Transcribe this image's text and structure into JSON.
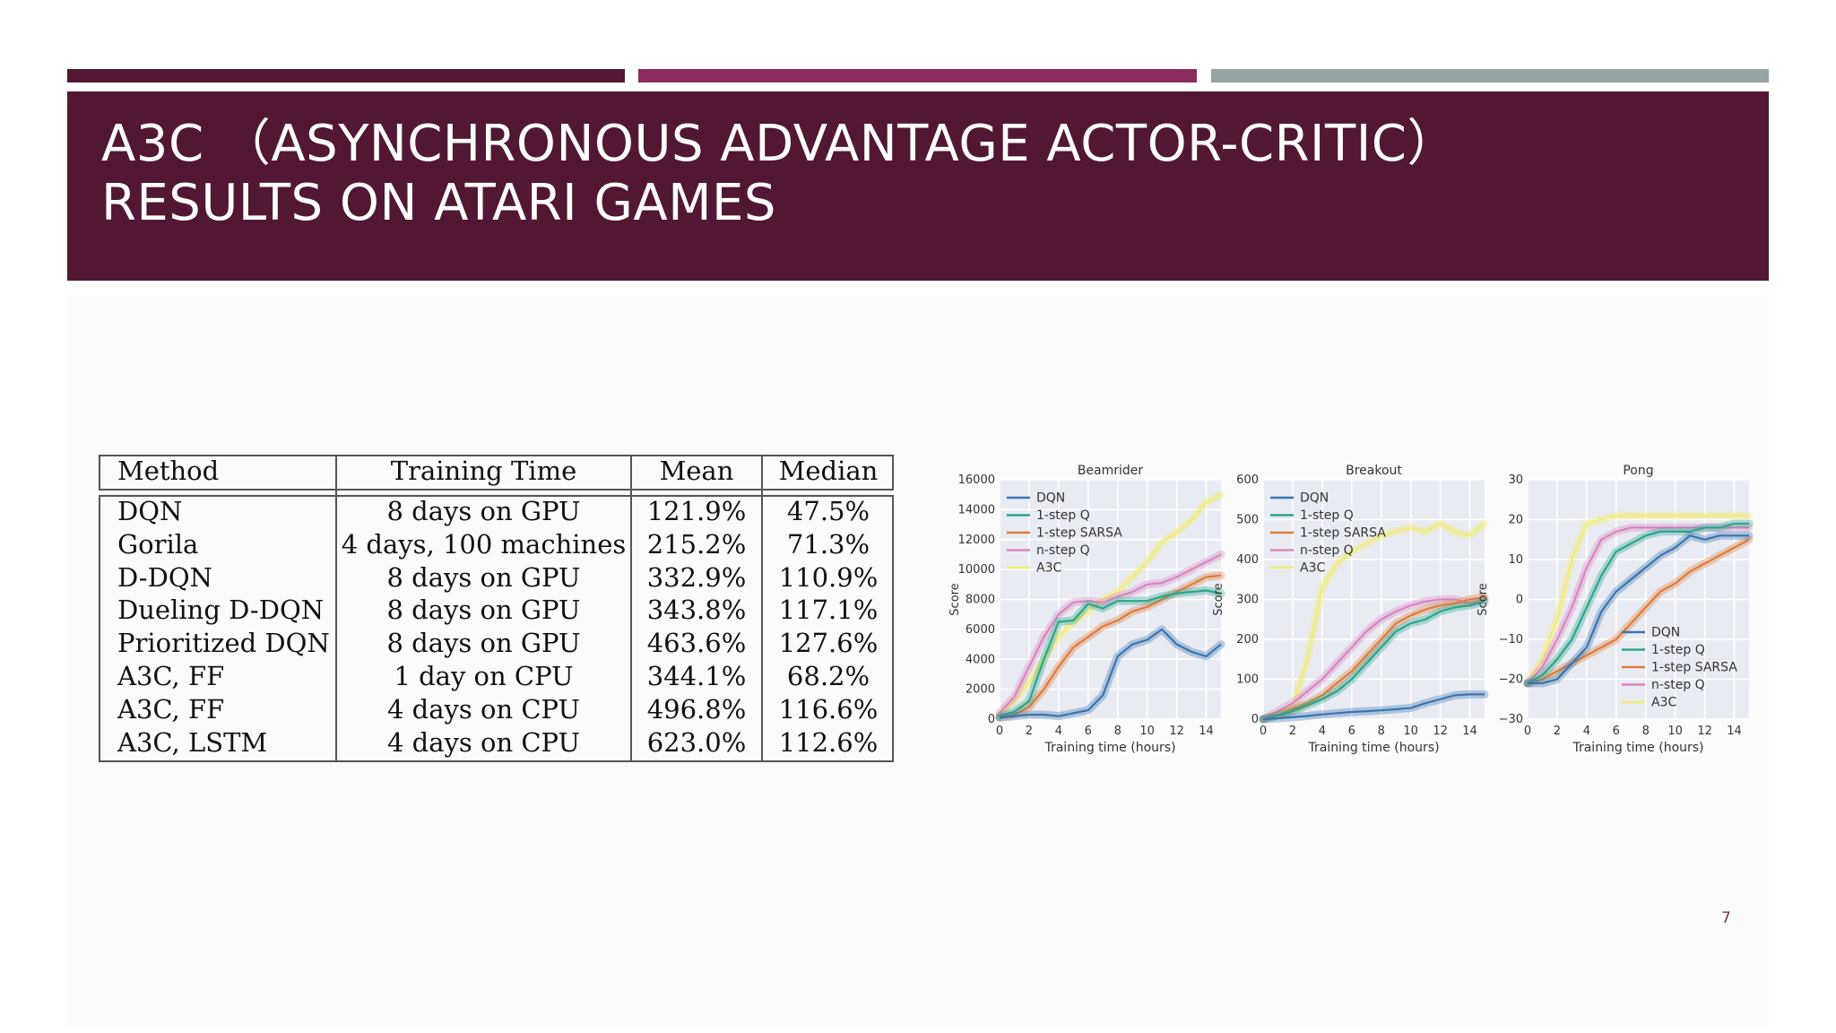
{
  "slide": {
    "title_line1": "A3C （ASYNCHRONOUS ADVANTAGE ACTOR-CRITIC）",
    "title_line2": "RESULTS ON ATARI GAMES",
    "page_number": "7",
    "accent_colors": [
      "#521733",
      "#8b2c5e",
      "#95a5a6"
    ]
  },
  "table": {
    "headers": [
      "Method",
      "Training Time",
      "Mean",
      "Median"
    ],
    "rows": [
      [
        "DQN",
        "8 days on GPU",
        "121.9%",
        "47.5%"
      ],
      [
        "Gorila",
        "4 days, 100 machines",
        "215.2%",
        "71.3%"
      ],
      [
        "D-DQN",
        "8 days on GPU",
        "332.9%",
        "110.9%"
      ],
      [
        "Dueling D-DQN",
        "8 days on GPU",
        "343.8%",
        "117.1%"
      ],
      [
        "Prioritized DQN",
        "8 days on GPU",
        "463.6%",
        "127.6%"
      ],
      [
        "A3C, FF",
        "1 day on CPU",
        "344.1%",
        "68.2%"
      ],
      [
        "A3C, FF",
        "4 days on CPU",
        "496.8%",
        "116.6%"
      ],
      [
        "A3C, LSTM",
        "4 days on CPU",
        "623.0%",
        "112.6%"
      ]
    ]
  },
  "chart_data": [
    {
      "type": "line",
      "title": "Beamrider",
      "xlabel": "Training time (hours)",
      "ylabel": "Score",
      "xlim": [
        0,
        15
      ],
      "ylim": [
        0,
        16000
      ],
      "xticks": [
        0,
        2,
        4,
        6,
        8,
        10,
        12,
        14
      ],
      "yticks": [
        0,
        2000,
        4000,
        6000,
        8000,
        10000,
        12000,
        14000,
        16000
      ],
      "legend_position": "top-left",
      "x": [
        0,
        1,
        2,
        3,
        4,
        5,
        6,
        7,
        8,
        9,
        10,
        11,
        12,
        13,
        14,
        15
      ],
      "series": [
        {
          "name": "DQN",
          "color": "#3b75af",
          "values": [
            100,
            200,
            300,
            300,
            200,
            400,
            600,
            1600,
            4200,
            5000,
            5300,
            6000,
            5000,
            4500,
            4200,
            5000
          ]
        },
        {
          "name": "1-step Q",
          "color": "#2ca58d",
          "values": [
            200,
            500,
            1200,
            4000,
            6500,
            6600,
            7700,
            7400,
            7900,
            7900,
            7900,
            8200,
            8400,
            8500,
            8600,
            8400
          ]
        },
        {
          "name": "1-step SARSA",
          "color": "#e07b39",
          "values": [
            100,
            300,
            800,
            2000,
            3500,
            4800,
            5500,
            6200,
            6600,
            7200,
            7500,
            8000,
            8500,
            9000,
            9500,
            9600
          ]
        },
        {
          "name": "n-step Q",
          "color": "#d985c0",
          "values": [
            400,
            1500,
            3500,
            5500,
            7000,
            7800,
            7900,
            7800,
            8200,
            8500,
            9000,
            9100,
            9500,
            10000,
            10500,
            11000
          ]
        },
        {
          "name": "A3C",
          "color": "#f3ec74",
          "values": [
            300,
            1200,
            2500,
            4000,
            5500,
            6500,
            7200,
            8000,
            8500,
            9500,
            10500,
            11800,
            12500,
            13300,
            14500,
            15000
          ]
        }
      ]
    },
    {
      "type": "line",
      "title": "Breakout",
      "xlabel": "Training time (hours)",
      "ylabel": "Score",
      "xlim": [
        0,
        15
      ],
      "ylim": [
        0,
        600
      ],
      "xticks": [
        0,
        2,
        4,
        6,
        8,
        10,
        12,
        14
      ],
      "yticks": [
        0,
        100,
        200,
        300,
        400,
        500,
        600
      ],
      "legend_position": "top-left",
      "x": [
        0,
        1,
        2,
        3,
        4,
        5,
        6,
        7,
        8,
        9,
        10,
        11,
        12,
        13,
        14,
        15
      ],
      "series": [
        {
          "name": "DQN",
          "color": "#3b75af",
          "values": [
            0,
            2,
            5,
            8,
            12,
            15,
            18,
            20,
            22,
            25,
            28,
            40,
            50,
            60,
            62,
            62
          ]
        },
        {
          "name": "1-step Q",
          "color": "#2ca58d",
          "values": [
            0,
            10,
            20,
            35,
            50,
            70,
            100,
            140,
            180,
            220,
            240,
            250,
            270,
            280,
            285,
            295
          ]
        },
        {
          "name": "1-step SARSA",
          "color": "#e07b39",
          "values": [
            0,
            10,
            25,
            40,
            60,
            90,
            120,
            160,
            200,
            240,
            260,
            275,
            285,
            290,
            300,
            305
          ]
        },
        {
          "name": "n-step Q",
          "color": "#d985c0",
          "values": [
            0,
            20,
            40,
            70,
            100,
            140,
            180,
            220,
            250,
            270,
            285,
            295,
            300,
            300,
            290,
            300
          ]
        },
        {
          "name": "A3C",
          "color": "#f3ec74",
          "values": [
            0,
            10,
            30,
            150,
            330,
            390,
            420,
            440,
            460,
            470,
            480,
            470,
            490,
            470,
            460,
            490
          ]
        }
      ]
    },
    {
      "type": "line",
      "title": "Pong",
      "xlabel": "Training time (hours)",
      "ylabel": "Score",
      "xlim": [
        0,
        15
      ],
      "ylim": [
        -30,
        30
      ],
      "xticks": [
        0,
        2,
        4,
        6,
        8,
        10,
        12,
        14
      ],
      "yticks": [
        -30,
        -20,
        -10,
        0,
        10,
        20,
        30
      ],
      "legend_position": "bottom-right",
      "x": [
        0,
        1,
        2,
        3,
        4,
        5,
        6,
        7,
        8,
        9,
        10,
        11,
        12,
        13,
        14,
        15
      ],
      "series": [
        {
          "name": "DQN",
          "color": "#3b75af",
          "values": [
            -21,
            -21,
            -20,
            -16,
            -12,
            -3,
            2,
            5,
            8,
            11,
            13,
            16,
            15,
            16,
            16,
            16
          ]
        },
        {
          "name": "1-step Q",
          "color": "#2ca58d",
          "values": [
            -21,
            -19,
            -15,
            -10,
            -2,
            6,
            12,
            14,
            16,
            17,
            17,
            17,
            18,
            18,
            19,
            19
          ]
        },
        {
          "name": "1-step SARSA",
          "color": "#e07b39",
          "values": [
            -21,
            -20,
            -18,
            -16,
            -14,
            -12,
            -10,
            -6,
            -2,
            2,
            4,
            7,
            9,
            11,
            13,
            15
          ]
        },
        {
          "name": "n-step Q",
          "color": "#d985c0",
          "values": [
            -21,
            -17,
            -10,
            -2,
            8,
            15,
            17,
            18,
            18,
            18,
            18,
            18,
            18,
            18,
            18,
            18
          ]
        },
        {
          "name": "A3C",
          "color": "#f3ec74",
          "values": [
            -21,
            -15,
            -5,
            10,
            19,
            20,
            21,
            21,
            21,
            21,
            21,
            21,
            21,
            21,
            21,
            21
          ]
        }
      ]
    }
  ]
}
